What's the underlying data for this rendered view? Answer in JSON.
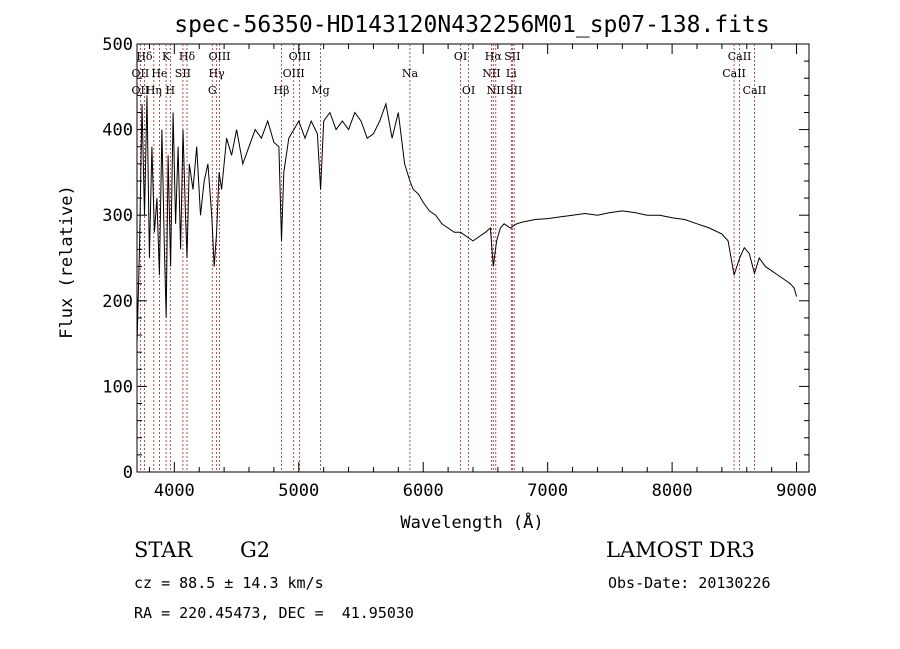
{
  "chart_data": {
    "type": "line",
    "title": "spec-56350-HD143120N432256M01_sp07-138.fits",
    "xlabel": "Wavelength (Å)",
    "ylabel": "Flux (relative)",
    "xlim": [
      3700,
      9100
    ],
    "ylim": [
      0,
      500
    ],
    "xticks": [
      4000,
      5000,
      6000,
      7000,
      8000,
      9000
    ],
    "yticks": [
      0,
      100,
      200,
      300,
      400,
      500
    ],
    "series": [
      {
        "x": [
          3700,
          3720,
          3740,
          3760,
          3780,
          3800,
          3820,
          3840,
          3860,
          3880,
          3900,
          3920,
          3935,
          3950,
          3970,
          3990,
          4010,
          4030,
          4050,
          4070,
          4090,
          4102,
          4120,
          4150,
          4180,
          4210,
          4240,
          4270,
          4300,
          4320,
          4340,
          4360,
          4380,
          4420,
          4460,
          4500,
          4550,
          4600,
          4650,
          4700,
          4750,
          4800,
          4840,
          4861,
          4880,
          4920,
          4960,
          5000,
          5050,
          5100,
          5150,
          5175,
          5200,
          5250,
          5300,
          5350,
          5400,
          5450,
          5500,
          5550,
          5600,
          5650,
          5700,
          5750,
          5800,
          5850,
          5893,
          5920,
          5960,
          6000,
          6050,
          6100,
          6150,
          6200,
          6250,
          6300,
          6350,
          6400,
          6450,
          6500,
          6540,
          6563,
          6590,
          6620,
          6650,
          6700,
          6750,
          6800,
          6900,
          7000,
          7100,
          7200,
          7300,
          7400,
          7500,
          7600,
          7700,
          7800,
          7900,
          8000,
          8100,
          8200,
          8300,
          8400,
          8450,
          8498,
          8542,
          8580,
          8620,
          8662,
          8700,
          8750,
          8800,
          8850,
          8900,
          8950,
          8980,
          9000
        ],
        "values": [
          150,
          260,
          430,
          300,
          440,
          250,
          380,
          280,
          320,
          230,
          400,
          260,
          180,
          370,
          240,
          420,
          290,
          380,
          260,
          400,
          300,
          250,
          360,
          330,
          380,
          300,
          340,
          360,
          300,
          240,
          280,
          350,
          330,
          390,
          370,
          400,
          360,
          380,
          400,
          390,
          410,
          385,
          380,
          270,
          350,
          390,
          400,
          410,
          390,
          410,
          395,
          330,
          410,
          420,
          400,
          410,
          400,
          420,
          410,
          390,
          395,
          410,
          430,
          390,
          420,
          360,
          340,
          330,
          325,
          315,
          305,
          300,
          290,
          285,
          280,
          280,
          275,
          270,
          275,
          280,
          285,
          240,
          270,
          285,
          290,
          285,
          290,
          292,
          295,
          296,
          298,
          300,
          302,
          300,
          303,
          305,
          303,
          300,
          300,
          297,
          295,
          290,
          285,
          278,
          270,
          230,
          250,
          262,
          255,
          232,
          250,
          240,
          235,
          230,
          225,
          220,
          215,
          205
        ]
      }
    ],
    "spectral_lines": [
      {
        "label": "Hδ",
        "x": 3760,
        "row": 0
      },
      {
        "label": "K",
        "x": 3934,
        "row": 0
      },
      {
        "label": "Hδ",
        "x": 4102,
        "row": 0
      },
      {
        "label": "OIII",
        "x": 4363,
        "row": 0
      },
      {
        "label": "OIII",
        "x": 5007,
        "row": 0
      },
      {
        "label": "OI",
        "x": 6300,
        "row": 0
      },
      {
        "label": "Hα",
        "x": 6563,
        "row": 0
      },
      {
        "label": "SII",
        "x": 6716,
        "row": 0
      },
      {
        "label": "CaII",
        "x": 8542,
        "row": 0
      },
      {
        "label": "OII",
        "x": 3727,
        "row": 1
      },
      {
        "label": "He",
        "x": 3880,
        "row": 1
      },
      {
        "label": "SII",
        "x": 4069,
        "row": 1
      },
      {
        "label": "Hγ",
        "x": 4340,
        "row": 1
      },
      {
        "label": "OIII",
        "x": 4959,
        "row": 1
      },
      {
        "label": "Na",
        "x": 5893,
        "row": 1
      },
      {
        "label": "NII",
        "x": 6548,
        "row": 1
      },
      {
        "label": "Li",
        "x": 6708,
        "row": 1
      },
      {
        "label": "CaII",
        "x": 8498,
        "row": 1
      },
      {
        "label": "OII",
        "x": 3727,
        "row": 2
      },
      {
        "label": "Hη",
        "x": 3835,
        "row": 2
      },
      {
        "label": "H",
        "x": 3968,
        "row": 2
      },
      {
        "label": "G",
        "x": 4305,
        "row": 2
      },
      {
        "label": "Hβ",
        "x": 4861,
        "row": 2
      },
      {
        "label": "Mg",
        "x": 5175,
        "row": 2
      },
      {
        "label": "OI",
        "x": 6364,
        "row": 2
      },
      {
        "label": "NII",
        "x": 6583,
        "row": 2
      },
      {
        "label": "SII",
        "x": 6731,
        "row": 2
      },
      {
        "label": "CaII",
        "x": 8662,
        "row": 2
      }
    ]
  },
  "info": {
    "object_class": "STAR",
    "subclass": "G2",
    "survey": "LAMOST DR3",
    "redshift": "cz = 88.5 ± 14.3 km/s",
    "obs_date": "Obs-Date: 20130226",
    "coords": "RA = 220.45473, DEC =  41.95030"
  }
}
